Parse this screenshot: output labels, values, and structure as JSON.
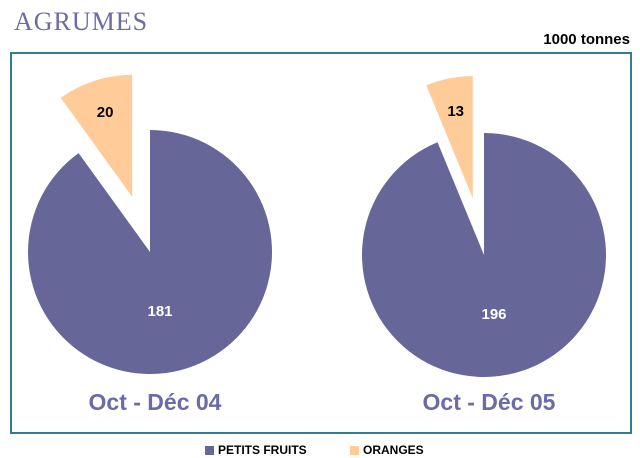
{
  "title": "AGRUMES",
  "unit": "1000 tonnes",
  "legend": {
    "labels": [
      "PETITS FRUITS",
      "ORANGES"
    ],
    "colors": [
      "#666699",
      "#FFCC99"
    ]
  },
  "chart_data": [
    {
      "type": "pie",
      "title": "Oct - Déc 04",
      "values": [
        181,
        20
      ]
    },
    {
      "type": "pie",
      "title": "Oct - Déc 05",
      "values": [
        196,
        13
      ]
    }
  ]
}
